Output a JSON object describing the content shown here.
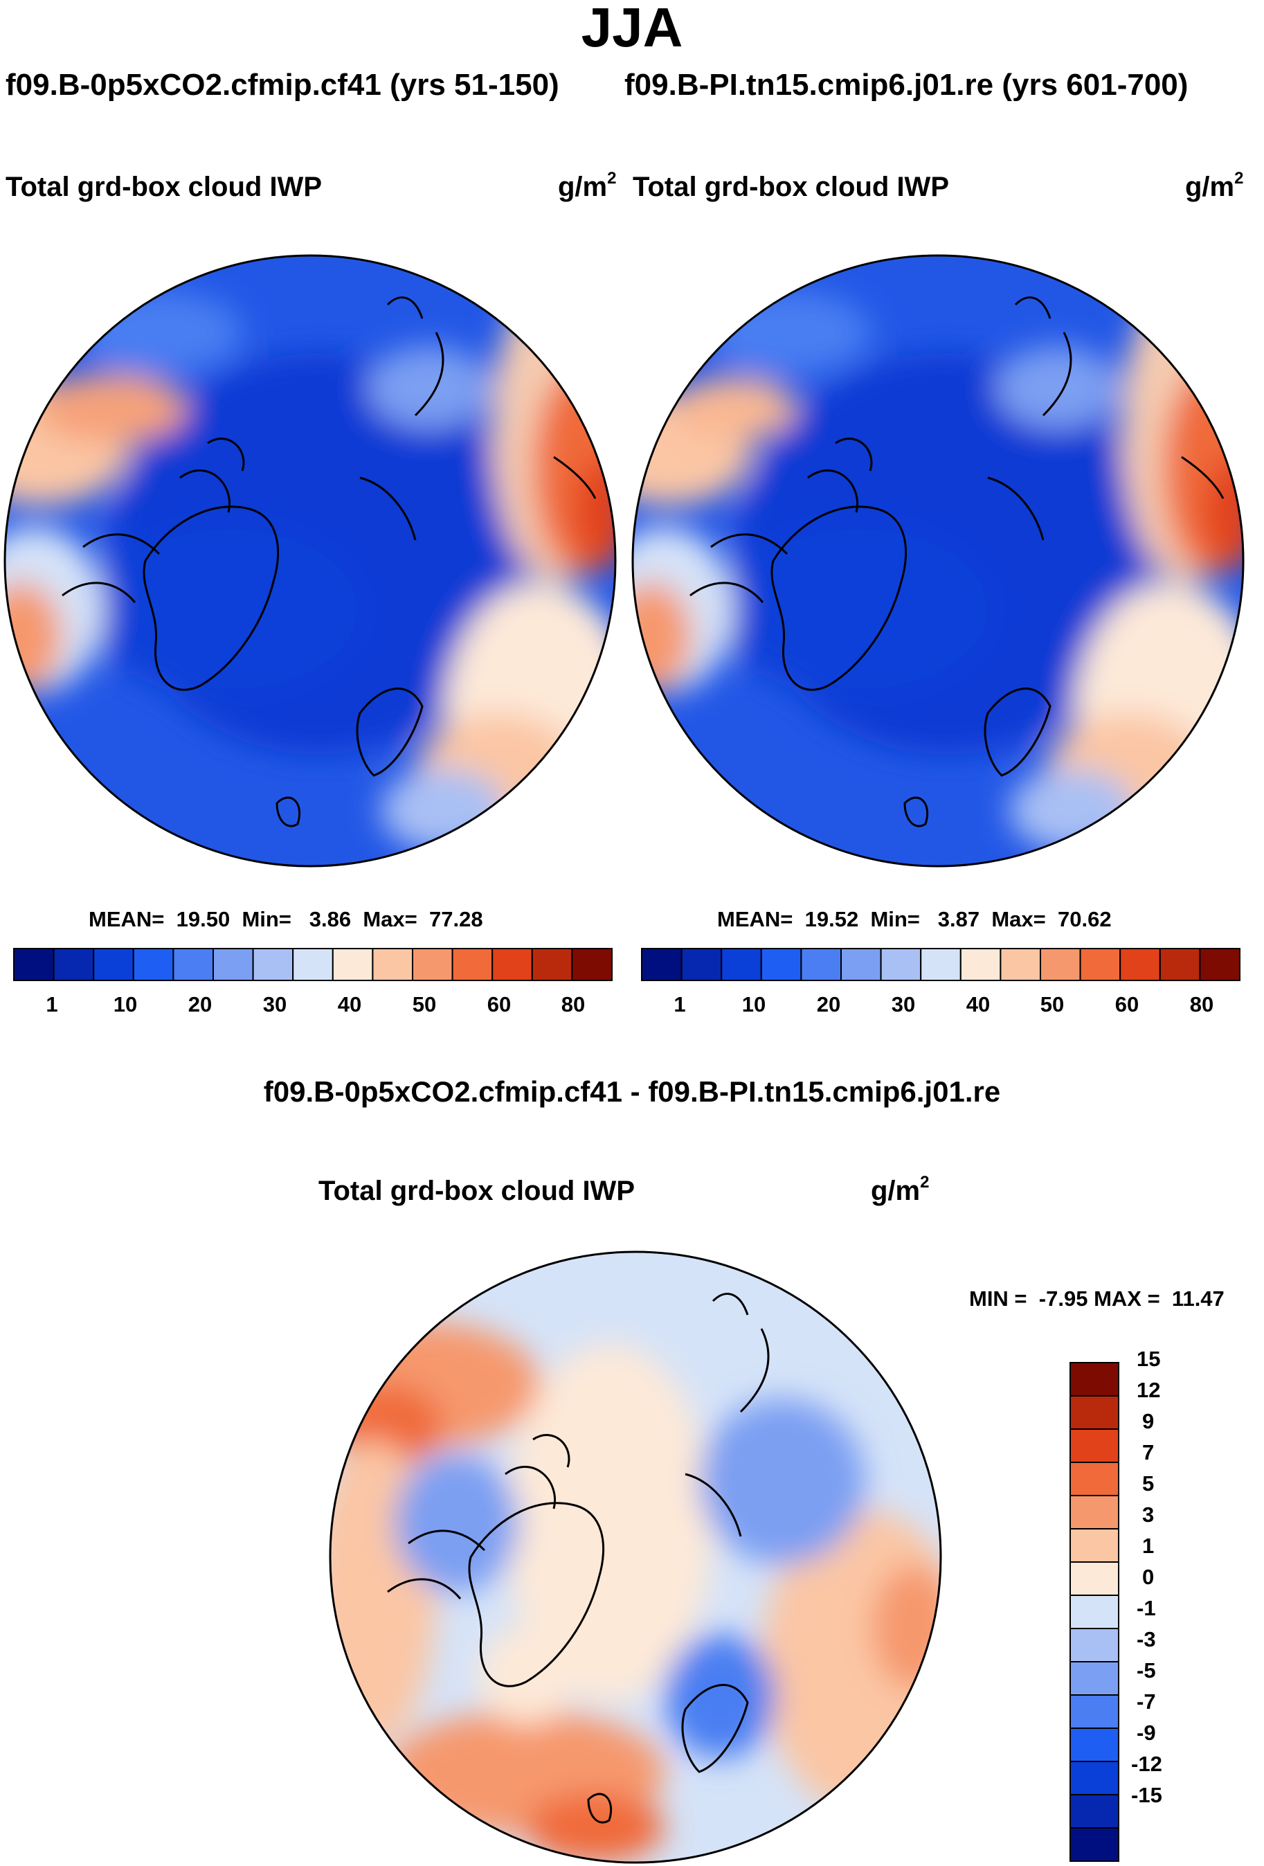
{
  "figure": {
    "season": "JJA",
    "case1": {
      "name": "f09.B-0p5xCO2.cfmip.cf41",
      "years": "(yrs 51-150)",
      "header": "f09.B-0p5xCO2.cfmip.cf41 (yrs 51-150)"
    },
    "case2": {
      "name": "f09.B-PI.tn15.cmip6.j01.re",
      "years": "(yrs 601-700)",
      "header": "f09.B-PI.tn15.cmip6.j01.re (yrs 601-700)"
    },
    "diff_title": "f09.B-0p5xCO2.cfmip.cf41 - f09.B-PI.tn15.cmip6.j01.re",
    "variable": "Total grd-box cloud IWP",
    "units": {
      "base": "g/m",
      "exp": "2"
    }
  },
  "chart_data": [
    {
      "type": "heatmap",
      "projection": "north-polar-stereographic",
      "title": "Total grd-box cloud IWP",
      "units": "g/m2",
      "stats": {
        "mean_label": "MEAN=",
        "mean": "19.50",
        "min_label": "Min=",
        "min": "3.86",
        "max_label": "Max=",
        "max": "77.28"
      },
      "colorbar": {
        "orientation": "horizontal",
        "tick_labels": [
          "1",
          "10",
          "20",
          "30",
          "40",
          "50",
          "60",
          "80"
        ],
        "colors": [
          "#000f80",
          "#0627b0",
          "#0a3fd8",
          "#1e5ef2",
          "#4a7ef2",
          "#7b9ff2",
          "#a9c0f4",
          "#d5e3f8",
          "#fde9d8",
          "#fbc6a4",
          "#f6986d",
          "#f06a3a",
          "#e2421a",
          "#b92a0d",
          "#7e0b02"
        ]
      }
    },
    {
      "type": "heatmap",
      "projection": "north-polar-stereographic",
      "title": "Total grd-box cloud IWP",
      "units": "g/m2",
      "stats": {
        "mean_label": "MEAN=",
        "mean": "19.52",
        "min_label": "Min=",
        "min": "3.87",
        "max_label": "Max=",
        "max": "70.62"
      },
      "colorbar": {
        "orientation": "horizontal",
        "tick_labels": [
          "1",
          "10",
          "20",
          "30",
          "40",
          "50",
          "60",
          "80"
        ],
        "colors": [
          "#000f80",
          "#0627b0",
          "#0a3fd8",
          "#1e5ef2",
          "#4a7ef2",
          "#7b9ff2",
          "#a9c0f4",
          "#d5e3f8",
          "#fde9d8",
          "#fbc6a4",
          "#f6986d",
          "#f06a3a",
          "#e2421a",
          "#b92a0d",
          "#7e0b02"
        ]
      }
    },
    {
      "type": "heatmap",
      "projection": "north-polar-stereographic",
      "title": "Total grd-box cloud IWP",
      "units": "g/m2",
      "stats": {
        "min_label": "MIN =",
        "min": "-7.95",
        "max_label": "MAX =",
        "max": "11.47"
      },
      "colorbar": {
        "orientation": "vertical",
        "tick_labels": [
          "15",
          "12",
          "9",
          "7",
          "5",
          "3",
          "1",
          "0",
          "-1",
          "-3",
          "-5",
          "-7",
          "-9",
          "-12",
          "-15"
        ],
        "colors": [
          "#7e0b02",
          "#b92a0d",
          "#e2421a",
          "#f06a3a",
          "#f6986d",
          "#fbc6a4",
          "#fde9d8",
          "#d5e3f8",
          "#a9c0f4",
          "#7b9ff2",
          "#4a7ef2",
          "#1e5ef2",
          "#0a3fd8",
          "#0627b0",
          "#000f80"
        ]
      }
    }
  ]
}
